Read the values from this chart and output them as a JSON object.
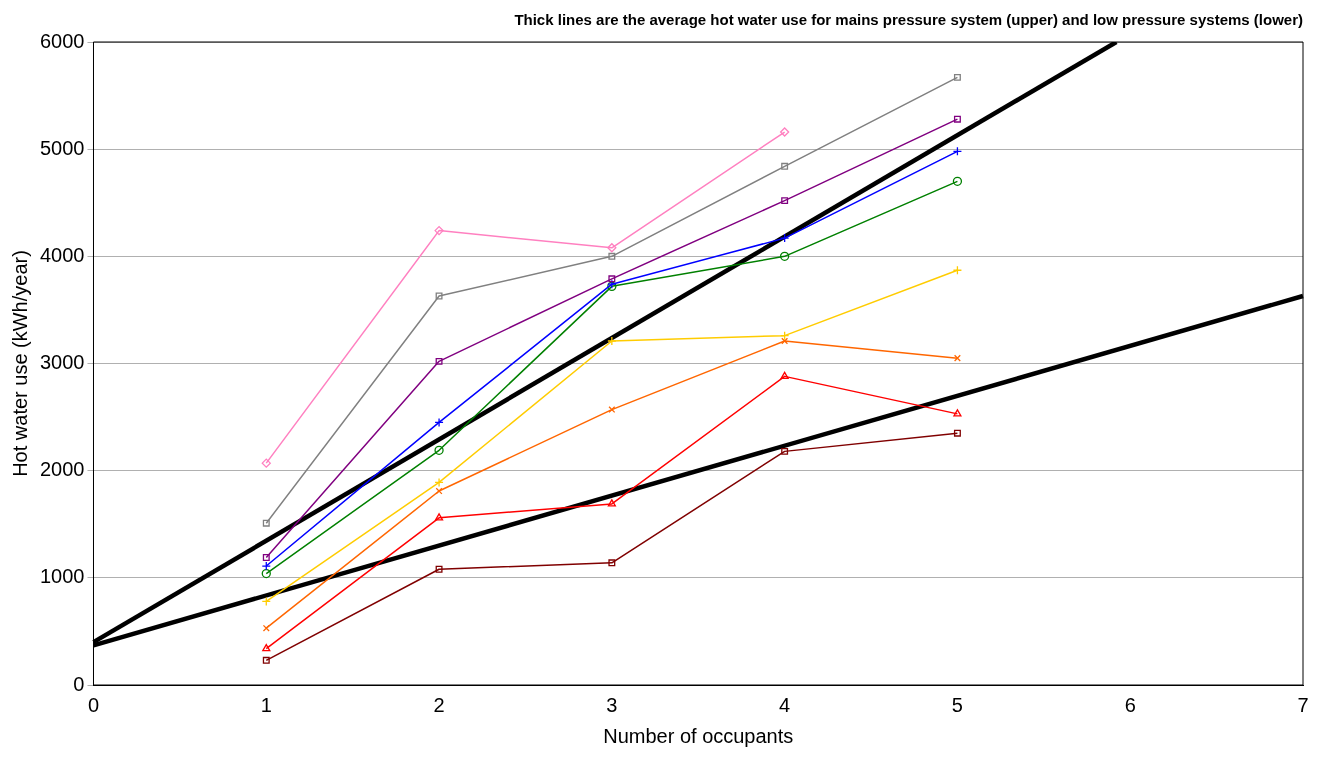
{
  "chart_data": {
    "type": "line",
    "title": "Thick lines are the average hot water use for mains pressure system (upper) and low pressure systems (lower)",
    "xlabel": "Number of occupants",
    "ylabel": "Hot water use (kWh/year)",
    "x": [
      1,
      2,
      3,
      4,
      5
    ],
    "xlim": [
      0,
      7
    ],
    "xticks": [
      0,
      1,
      2,
      3,
      4,
      5,
      6,
      7
    ],
    "ylim": [
      0,
      6000
    ],
    "yticks": [
      0,
      1000,
      2000,
      3000,
      4000,
      5000,
      6000
    ],
    "grid": "y",
    "legend": false,
    "series": [
      {
        "color": "#ff80c0",
        "marker": "diamond",
        "values": [
          2070,
          4240,
          4080,
          5160,
          null
        ]
      },
      {
        "color": "#808080",
        "marker": "square",
        "values": [
          1510,
          3630,
          4000,
          4840,
          5670
        ]
      },
      {
        "color": "#800080",
        "marker": "square",
        "values": [
          1190,
          3020,
          3790,
          4520,
          5280
        ]
      },
      {
        "color": "#0000ff",
        "marker": "cross",
        "values": [
          1110,
          2450,
          3740,
          4170,
          4980
        ]
      },
      {
        "color": "#008000",
        "marker": "circle",
        "values": [
          1040,
          2190,
          3720,
          4000,
          4700
        ]
      },
      {
        "color": "#ffcc00",
        "marker": "cross",
        "values": [
          780,
          1890,
          3210,
          3260,
          3870
        ]
      },
      {
        "color": "#ff6600",
        "marker": "x",
        "values": [
          530,
          1810,
          2570,
          3210,
          3050
        ]
      },
      {
        "color": "#ff0000",
        "marker": "triangle",
        "values": [
          340,
          1560,
          1690,
          2880,
          2530
        ]
      },
      {
        "color": "#800000",
        "marker": "square",
        "values": [
          230,
          1080,
          1140,
          2180,
          2350
        ]
      },
      {
        "color": "#000000",
        "marker": "none",
        "x": [
          0,
          5.92
        ],
        "values": [
          400,
          6000
        ]
      },
      {
        "color": "#000000",
        "marker": "none",
        "x": [
          0,
          7
        ],
        "values": [
          370,
          3630
        ]
      }
    ]
  }
}
